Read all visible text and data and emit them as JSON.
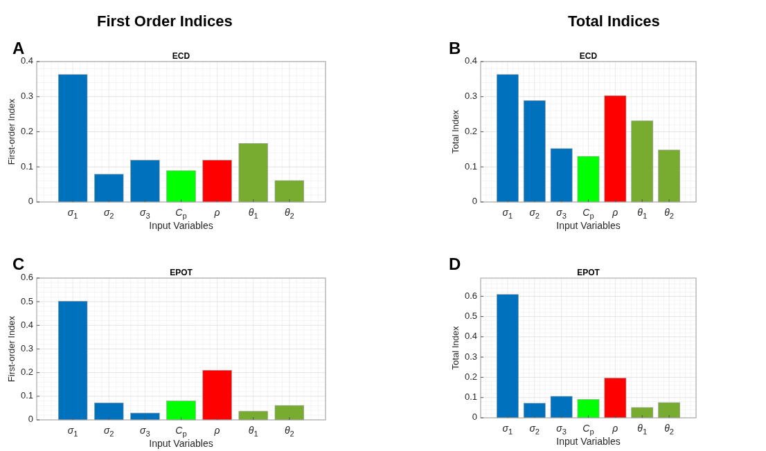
{
  "chart_data": [
    {
      "type": "bar",
      "title": "ECD",
      "xlabel": "Input Variables",
      "ylabel": "First-order Index",
      "annotations": [
        "First Order Indices",
        "A"
      ],
      "categories": [
        "σ$_{1}$",
        "σ$_{2}$",
        "σ$_{3}$",
        "C$_{p}$",
        "ρ",
        "θ$_{1}$",
        "θ$_{2}$"
      ],
      "values": [
        0.363,
        0.079,
        0.119,
        0.089,
        0.119,
        0.167,
        0.061
      ],
      "colors": [
        "#0072bd",
        "#0072bd",
        "#0072bd",
        "#00ff00",
        "#ff0000",
        "#77ac30",
        "#77ac30"
      ],
      "ylim": [
        0,
        0.4
      ],
      "yticks": [
        0,
        0.1,
        0.2,
        0.3,
        0.4
      ],
      "grid": true
    },
    {
      "type": "bar",
      "title": "ECD",
      "xlabel": "Input Variables",
      "ylabel": "Total Index",
      "annotations": [
        "Total Indices",
        "B"
      ],
      "categories": [
        "σ$_{1}$",
        "σ$_{2}$",
        "σ$_{3}$",
        "C$_{p}$",
        "ρ",
        "θ$_{1}$",
        "θ$_{2}$"
      ],
      "values": [
        0.363,
        0.289,
        0.152,
        0.13,
        0.303,
        0.231,
        0.148
      ],
      "colors": [
        "#0072bd",
        "#0072bd",
        "#0072bd",
        "#00ff00",
        "#ff0000",
        "#77ac30",
        "#77ac30"
      ],
      "ylim": [
        0,
        0.4
      ],
      "yticks": [
        0,
        0.1,
        0.2,
        0.3,
        0.4
      ],
      "grid": true
    },
    {
      "type": "bar",
      "title": "EPOT",
      "xlabel": "Input Variables",
      "ylabel": "First-order Index",
      "annotations": [
        "C"
      ],
      "categories": [
        "σ$_{1}$",
        "σ$_{2}$",
        "σ$_{3}$",
        "C$_{p}$",
        "ρ",
        "θ$_{1}$",
        "θ$_{2}$"
      ],
      "values": [
        0.502,
        0.072,
        0.029,
        0.08,
        0.21,
        0.036,
        0.061
      ],
      "colors": [
        "#0072bd",
        "#0072bd",
        "#0072bd",
        "#00ff00",
        "#ff0000",
        "#77ac30",
        "#77ac30"
      ],
      "ylim": [
        0,
        0.6
      ],
      "yticks": [
        0,
        0.1,
        0.2,
        0.3,
        0.4,
        0.5,
        0.6
      ],
      "grid": true
    },
    {
      "type": "bar",
      "title": "EPOT",
      "xlabel": "Input Variables",
      "ylabel": "Total Index",
      "annotations": [
        "D"
      ],
      "categories": [
        "σ$_{1}$",
        "σ$_{2}$",
        "σ$_{3}$",
        "C$_{p}$",
        "ρ",
        "θ$_{1}$",
        "θ$_{2}$"
      ],
      "values": [
        0.609,
        0.072,
        0.106,
        0.091,
        0.196,
        0.051,
        0.075
      ],
      "colors": [
        "#0072bd",
        "#0072bd",
        "#0072bd",
        "#00ff00",
        "#ff0000",
        "#77ac30",
        "#77ac30"
      ],
      "ylim": [
        0,
        0.69
      ],
      "yticks": [
        0,
        0.1,
        0.2,
        0.3,
        0.4,
        0.5,
        0.6
      ],
      "grid": true
    }
  ]
}
